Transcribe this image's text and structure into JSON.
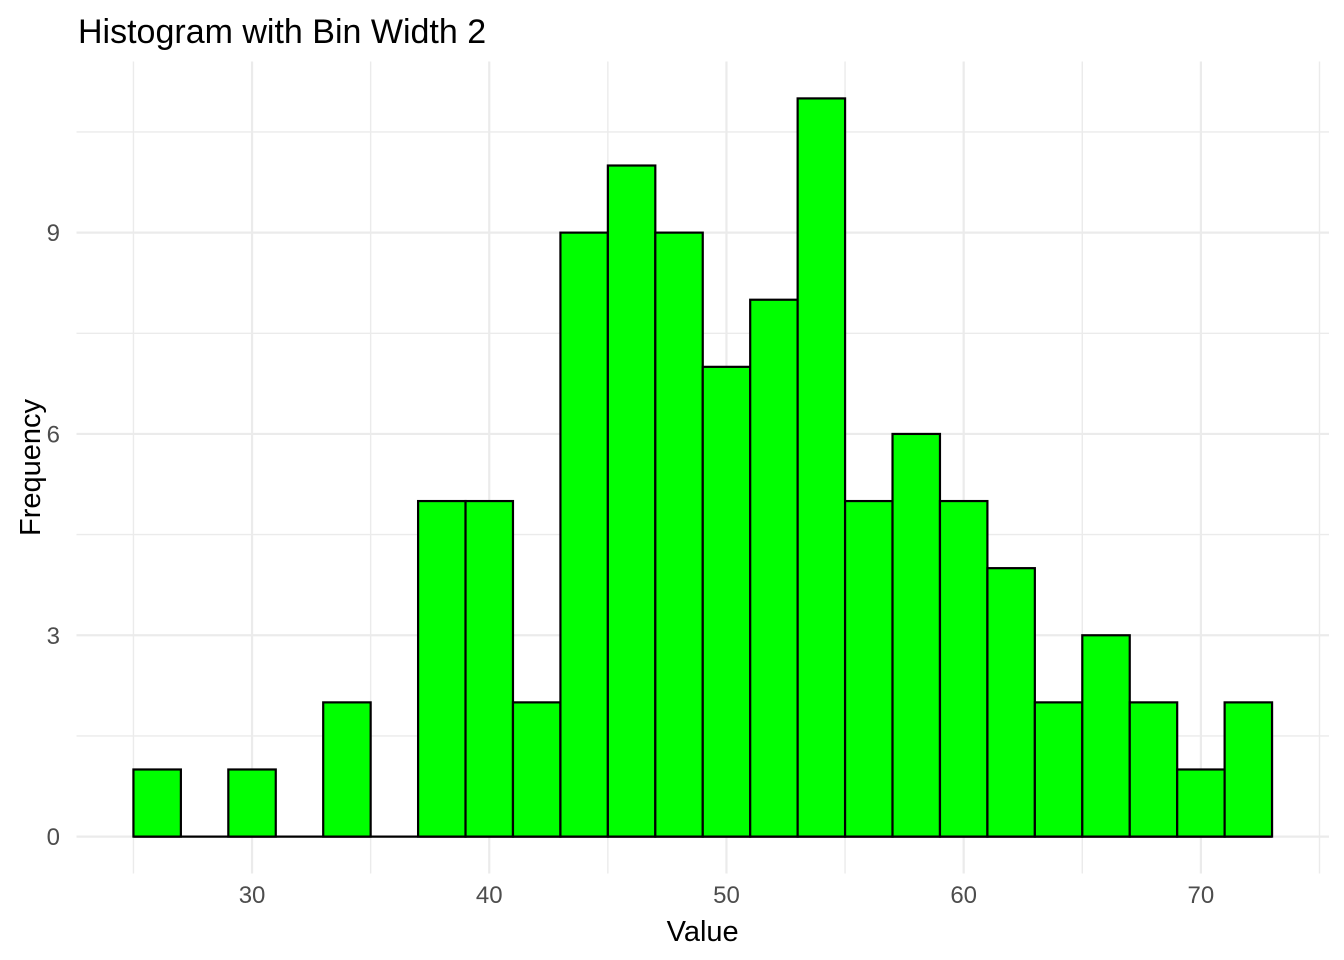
{
  "chart_data": {
    "type": "bar",
    "subtype": "histogram",
    "title": "Histogram with Bin Width 2",
    "xlabel": "Value",
    "ylabel": "Frequency",
    "bin_width": 2,
    "bin_edges": [
      25,
      27,
      29,
      31,
      33,
      35,
      37,
      39,
      41,
      43,
      45,
      47,
      49,
      51,
      53,
      55,
      57,
      59,
      61,
      63,
      65,
      67,
      69,
      71,
      73
    ],
    "counts": [
      1,
      0,
      1,
      0,
      2,
      0,
      5,
      5,
      2,
      9,
      10,
      9,
      7,
      8,
      11,
      5,
      6,
      5,
      4,
      2,
      3,
      2,
      1,
      2
    ],
    "total_observations": 100,
    "x_major_ticks": [
      30,
      40,
      50,
      60,
      70
    ],
    "y_major_ticks": [
      0,
      3,
      6,
      9
    ],
    "x_minor_gridlines": [
      25,
      35,
      45,
      55,
      65,
      75
    ],
    "y_minor_gridlines": [
      1.5,
      4.5,
      7.5,
      10.5
    ],
    "xlim": [
      22.6,
      75.4
    ],
    "ylim": [
      -0.55,
      11.55
    ],
    "grid": true,
    "legend": false,
    "colors": {
      "background": "#ffffff",
      "bar_fill": "#00ff00",
      "bar_stroke": "#000000",
      "gridline": "#ebebeb",
      "tick_label": "#4d4d4d",
      "title_text": "#000000"
    }
  }
}
